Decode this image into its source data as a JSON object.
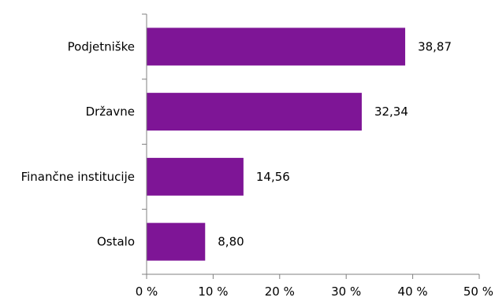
{
  "chart_data": {
    "type": "bar",
    "orientation": "horizontal",
    "categories": [
      "Podjetniške",
      "Državne",
      "Finančne institucije",
      "Ostalo"
    ],
    "values": [
      38.87,
      32.34,
      14.56,
      8.8
    ],
    "value_labels": [
      "38,87",
      "32,34",
      "14,56",
      "8,80"
    ],
    "x_ticks": [
      "0 %",
      "10 %",
      "20 %",
      "30 %",
      "40 %",
      "50 %"
    ],
    "xlim": [
      0,
      50
    ],
    "grid": false,
    "bar_color": "#7e1596"
  }
}
